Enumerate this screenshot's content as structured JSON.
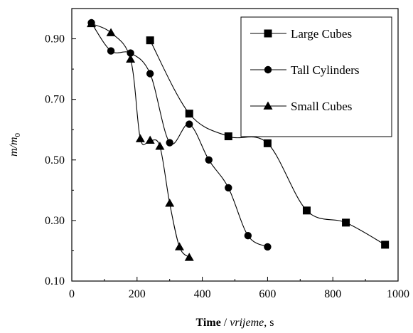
{
  "chart_data": {
    "type": "line",
    "title": "",
    "xlabel": {
      "bold": "Time",
      "sep": " / ",
      "italic": "vrijeme",
      "unit": ", s"
    },
    "ylabel": {
      "main": "m/m",
      "sub": "0"
    },
    "xlim": [
      0,
      1000
    ],
    "ylim": [
      0.1,
      1.0
    ],
    "xticks": [
      0,
      200,
      400,
      600,
      800,
      1000
    ],
    "xtick_labels": [
      "0",
      "200",
      "400",
      "600",
      "800",
      "1000"
    ],
    "yticks": [
      0.1,
      0.3,
      0.5,
      0.7,
      0.9
    ],
    "ytick_labels": [
      "0.10",
      "0.30",
      "0.50",
      "0.70",
      "0.90"
    ],
    "grid": false,
    "legend_position": "top-right",
    "series": [
      {
        "name": "Large Cubes",
        "marker": "square",
        "x": [
          240,
          360,
          480,
          600,
          720,
          840,
          960
        ],
        "y": [
          0.895,
          0.653,
          0.578,
          0.555,
          0.333,
          0.293,
          0.22
        ]
      },
      {
        "name": "Tall Cylinders",
        "marker": "circle",
        "x": [
          60,
          120,
          180,
          240,
          300,
          360,
          420,
          480,
          540,
          600
        ],
        "y": [
          0.953,
          0.86,
          0.853,
          0.785,
          0.557,
          0.618,
          0.5,
          0.408,
          0.25,
          0.213
        ]
      },
      {
        "name": "Small Cubes",
        "marker": "triangle",
        "x": [
          60,
          120,
          180,
          210,
          240,
          270,
          300,
          330,
          360
        ],
        "y": [
          0.95,
          0.92,
          0.833,
          0.57,
          0.565,
          0.545,
          0.357,
          0.213,
          0.178
        ]
      }
    ]
  }
}
